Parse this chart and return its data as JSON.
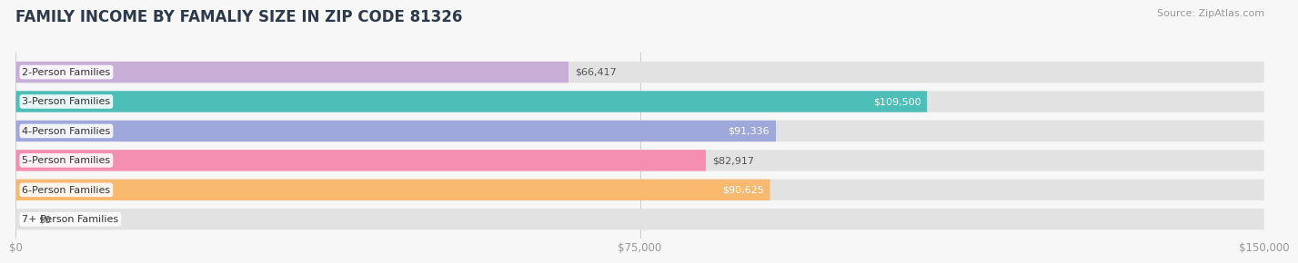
{
  "title": "FAMILY INCOME BY FAMALIY SIZE IN ZIP CODE 81326",
  "source": "Source: ZipAtlas.com",
  "categories": [
    "2-Person Families",
    "3-Person Families",
    "4-Person Families",
    "5-Person Families",
    "6-Person Families",
    "7+ Person Families"
  ],
  "values": [
    66417,
    109500,
    91336,
    82917,
    90625,
    0
  ],
  "bar_colors": [
    "#c9aed8",
    "#4dbfb8",
    "#9fa8da",
    "#f48fb1",
    "#f9b96e",
    "#f8bbd0"
  ],
  "value_label_inside": [
    false,
    true,
    true,
    false,
    true,
    false
  ],
  "xlim": [
    0,
    150000
  ],
  "xticks": [
    0,
    75000,
    150000
  ],
  "xtick_labels": [
    "$0",
    "$75,000",
    "$150,000"
  ],
  "background_color": "#f7f7f7",
  "bar_bg_color": "#e2e2e2",
  "title_fontsize": 12,
  "source_fontsize": 8,
  "bar_height": 0.72,
  "cat_fontsize": 8,
  "val_fontsize": 8
}
